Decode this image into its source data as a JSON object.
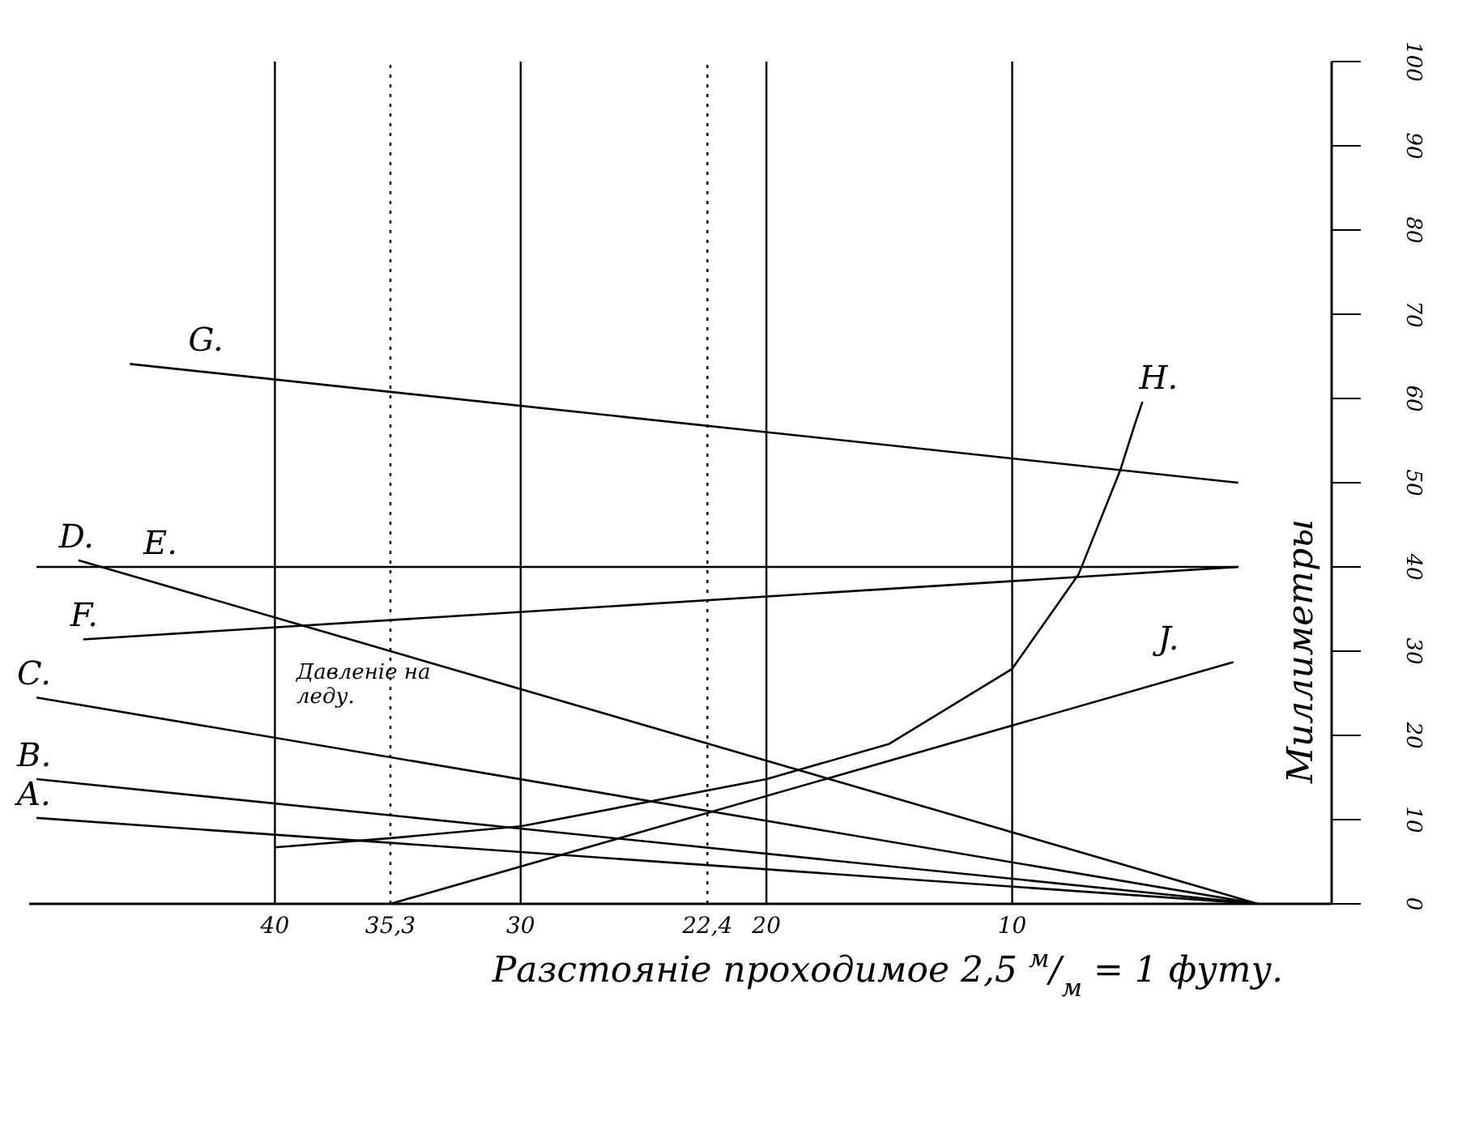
{
  "chart_data": {
    "type": "line",
    "xlabel": "Разстояніе проходимое 2,5 $^{м}$/$_{м}$ = 1 футу.",
    "ylabel": "Миллиметры",
    "annotations": [
      "Давленіе на леду."
    ],
    "xlim": [
      50,
      -3
    ],
    "ylim": [
      0,
      100
    ],
    "xticks": [
      40,
      {
        "value": 35.3,
        "label": "35,3"
      },
      30,
      {
        "value": 22.4,
        "label": "22,4"
      },
      20,
      10
    ],
    "yticks": [
      0,
      10,
      20,
      30,
      40,
      50,
      60,
      70,
      80,
      90,
      100
    ],
    "marker": "none",
    "line_style": "solid",
    "ref_lines": [
      {
        "axis": "x",
        "value": 40,
        "label": null
      },
      {
        "axis": "x",
        "value": 35.3,
        "label": null,
        "line_style": "dotted"
      },
      {
        "axis": "x",
        "value": 30,
        "label": null
      },
      {
        "axis": "x",
        "value": 22.4,
        "label": null,
        "line_style": "dotted"
      },
      {
        "axis": "x",
        "value": 20,
        "label": null
      },
      {
        "axis": "x",
        "value": 10,
        "label": null
      }
    ],
    "series": [
      {
        "name": "A.",
        "color": "#000000",
        "x": [
          49.7,
          0
        ],
        "values": [
          10.2,
          0
        ]
      },
      {
        "name": "B.",
        "color": "#000000",
        "x": [
          49.7,
          0
        ],
        "values": [
          14.8,
          0
        ]
      },
      {
        "name": "C.",
        "color": "#000000",
        "x": [
          49.7,
          0
        ],
        "values": [
          24.5,
          0
        ]
      },
      {
        "name": "D.",
        "color": "#000000",
        "x": [
          48,
          0
        ],
        "values": [
          40.8,
          0
        ]
      },
      {
        "name": "E.",
        "color": "#000000",
        "x": [
          49.7,
          0.8
        ],
        "values": [
          40,
          40
        ]
      },
      {
        "name": "F.",
        "color": "#000000",
        "x": [
          47.8,
          0.8
        ],
        "values": [
          31.4,
          40
        ]
      },
      {
        "name": "G.",
        "color": "#000000",
        "x": [
          45.9,
          0.8
        ],
        "values": [
          64.1,
          50
        ]
      },
      {
        "name": "H.",
        "color": "#000000",
        "x": [
          40,
          35.3,
          30,
          20,
          15,
          10,
          7.3,
          5.6,
          5,
          4.7
        ],
        "values": [
          6.7,
          7.8,
          9.2,
          14.8,
          19,
          27.9,
          39.1,
          51.5,
          57,
          59.6
        ]
      },
      {
        "name": "J.",
        "color": "#000000",
        "x": [
          35.3,
          1
        ],
        "values": [
          0,
          28.7
        ]
      }
    ]
  }
}
